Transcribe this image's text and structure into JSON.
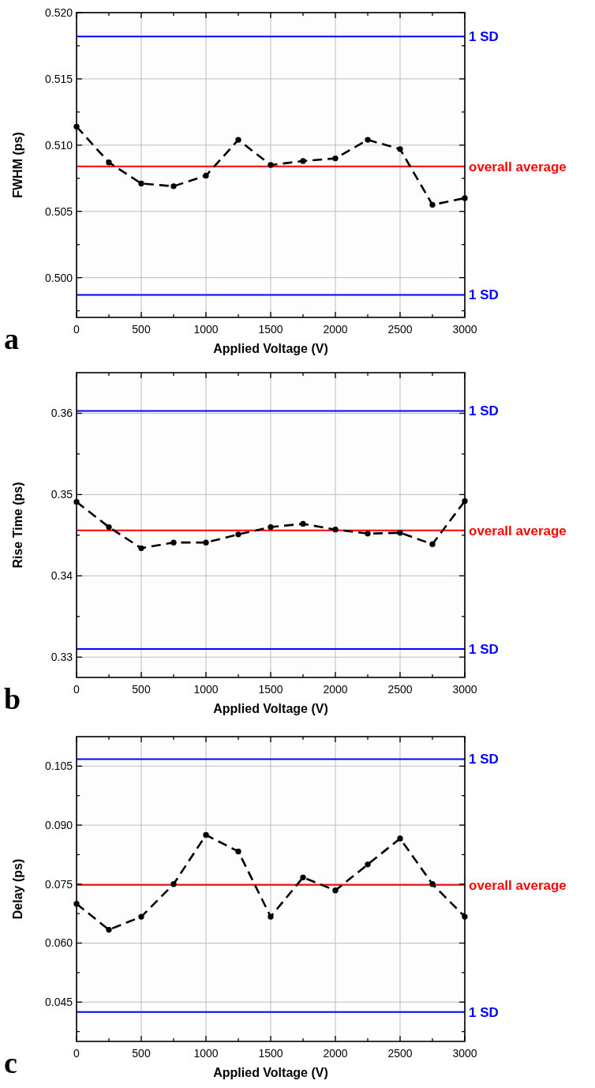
{
  "chart_data": [
    {
      "type": "line",
      "xlabel": "Applied Voltage (V)",
      "ylabel": "FWHM (ps)",
      "annotations": [
        "a"
      ],
      "grid": true,
      "marker": "circle",
      "line_style": "dashed",
      "x": [
        0,
        250,
        500,
        750,
        1000,
        1250,
        1500,
        1750,
        2000,
        2250,
        2500,
        2750,
        3000
      ],
      "series": [
        {
          "color": "#000000",
          "values": [
            0.5114,
            0.5087,
            0.5071,
            0.5069,
            0.5077,
            0.5104,
            0.5085,
            0.5088,
            0.509,
            0.5104,
            0.5097,
            0.5055,
            0.506
          ]
        }
      ],
      "xlim": [
        0,
        3000
      ],
      "xticks": [
        0,
        {
          "value": 250,
          "label": null
        },
        500,
        {
          "value": 750,
          "label": null
        },
        1000,
        {
          "value": 1250,
          "label": null
        },
        1500,
        {
          "value": 1750,
          "label": null
        },
        2000,
        {
          "value": 2250,
          "label": null
        },
        2500,
        {
          "value": 2750,
          "label": null
        },
        3000
      ],
      "ylim": [
        0.497,
        0.52
      ],
      "yticks": [
        {
          "value": 0.4975,
          "label": null
        },
        {
          "value": 0.5,
          "label": "0.500"
        },
        {
          "value": 0.5025,
          "label": null
        },
        0.505,
        {
          "value": 0.5075,
          "label": null
        },
        {
          "value": 0.51,
          "label": "0.510"
        },
        {
          "value": 0.5125,
          "label": null
        },
        0.515,
        {
          "value": 0.5175,
          "label": null
        },
        {
          "value": 0.52,
          "label": "0.520"
        }
      ],
      "ref_lines": [
        {
          "axis": "y",
          "value": 0.5182,
          "label": "1 SD",
          "color": "#0000ff"
        },
        {
          "axis": "y",
          "value": 0.5084,
          "label": "overall average",
          "color": "#ff0000"
        },
        {
          "axis": "y",
          "value": 0.4987,
          "label": "1 SD",
          "color": "#0000ff"
        }
      ]
    },
    {
      "type": "line",
      "xlabel": "Applied Voltage (V)",
      "ylabel": "Rise Time (ps)",
      "annotations": [
        "b"
      ],
      "grid": true,
      "marker": "circle",
      "line_style": "dashed",
      "x": [
        0,
        250,
        500,
        750,
        1000,
        1250,
        1500,
        1750,
        2000,
        2250,
        2500,
        2750,
        3000
      ],
      "series": [
        {
          "color": "#000000",
          "values": [
            0.3491,
            0.346,
            0.3434,
            0.3441,
            0.3441,
            0.3451,
            0.346,
            0.3464,
            0.3457,
            0.3452,
            0.3453,
            0.3439,
            0.3492
          ]
        }
      ],
      "xlim": [
        0,
        3000
      ],
      "xticks": [
        0,
        {
          "value": 250,
          "label": null
        },
        500,
        {
          "value": 750,
          "label": null
        },
        1000,
        {
          "value": 1250,
          "label": null
        },
        1500,
        {
          "value": 1750,
          "label": null
        },
        2000,
        {
          "value": 2250,
          "label": null
        },
        2500,
        {
          "value": 2750,
          "label": null
        },
        3000
      ],
      "ylim": [
        0.3275,
        0.365
      ],
      "yticks": [
        0.33,
        {
          "value": 0.335,
          "label": null
        },
        0.34,
        {
          "value": 0.345,
          "label": null
        },
        0.35,
        {
          "value": 0.355,
          "label": null
        },
        0.36
      ],
      "ref_lines": [
        {
          "axis": "y",
          "value": 0.3603,
          "label": "1 SD",
          "color": "#0000ff"
        },
        {
          "axis": "y",
          "value": 0.3456,
          "label": "overall average",
          "color": "#ff0000"
        },
        {
          "axis": "y",
          "value": 0.331,
          "label": "1 SD",
          "color": "#0000ff"
        }
      ]
    },
    {
      "type": "line",
      "xlabel": "Applied Voltage (V)",
      "ylabel": "Delay (ps)",
      "annotations": [
        "c"
      ],
      "grid": true,
      "marker": "circle",
      "line_style": "dashed",
      "x": [
        0,
        250,
        500,
        750,
        1000,
        1250,
        1500,
        1750,
        2000,
        2250,
        2500,
        2750,
        3000
      ],
      "series": [
        {
          "color": "#000000",
          "values": [
            0.07,
            0.0634,
            0.0667,
            0.075,
            0.0875,
            0.0833,
            0.0667,
            0.0767,
            0.0734,
            0.08,
            0.0866,
            0.075,
            0.0667
          ]
        }
      ],
      "xlim": [
        0,
        3000
      ],
      "xticks": [
        0,
        {
          "value": 250,
          "label": null
        },
        500,
        {
          "value": 750,
          "label": null
        },
        1000,
        {
          "value": 1250,
          "label": null
        },
        1500,
        {
          "value": 1750,
          "label": null
        },
        2000,
        {
          "value": 2250,
          "label": null
        },
        2500,
        {
          "value": 2750,
          "label": null
        },
        3000
      ],
      "ylim": [
        0.035,
        0.1125
      ],
      "yticks": [
        {
          "value": 0.0375,
          "label": null
        },
        0.045,
        {
          "value": 0.0525,
          "label": null
        },
        {
          "value": 0.06,
          "label": "0.060"
        },
        {
          "value": 0.0675,
          "label": null
        },
        0.075,
        {
          "value": 0.0825,
          "label": null
        },
        {
          "value": 0.09,
          "label": "0.090"
        },
        {
          "value": 0.0975,
          "label": null
        },
        0.105
      ],
      "ref_lines": [
        {
          "axis": "y",
          "value": 0.1068,
          "label": "1 SD",
          "color": "#0000ff"
        },
        {
          "axis": "y",
          "value": 0.0748,
          "label": "overall average",
          "color": "#ff0000"
        },
        {
          "axis": "y",
          "value": 0.0425,
          "label": "1 SD",
          "color": "#0000ff"
        }
      ]
    }
  ]
}
